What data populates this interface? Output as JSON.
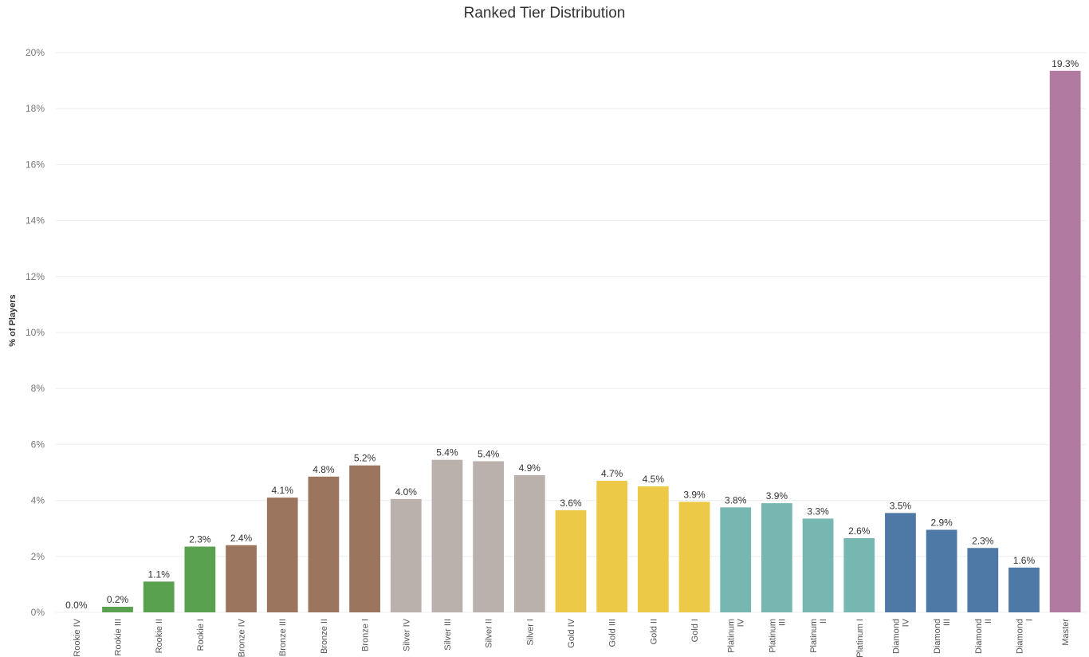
{
  "chart_data": {
    "type": "bar",
    "title": "Ranked Tier Distribution",
    "xlabel": "",
    "ylabel": "% of Players",
    "ylim": [
      0,
      20
    ],
    "yticks": [
      0,
      2,
      4,
      6,
      8,
      10,
      12,
      14,
      16,
      18,
      20
    ],
    "ytick_suffix": "%",
    "grid": true,
    "categories": [
      [
        "Rookie IV"
      ],
      [
        "Rookie III"
      ],
      [
        "Rookie II"
      ],
      [
        "Rookie I"
      ],
      [
        "Bronze IV"
      ],
      [
        "Bronze III"
      ],
      [
        "Bronze II"
      ],
      [
        "Bronze I"
      ],
      [
        "Silver IV"
      ],
      [
        "Silver III"
      ],
      [
        "Silver II"
      ],
      [
        "Silver I"
      ],
      [
        "Gold IV"
      ],
      [
        "Gold III"
      ],
      [
        "Gold II"
      ],
      [
        "Gold I"
      ],
      [
        "Platinum",
        "IV"
      ],
      [
        "Platinum",
        "III"
      ],
      [
        "Platinum",
        "II"
      ],
      [
        "Platinum I"
      ],
      [
        "Diamond",
        "IV"
      ],
      [
        "Diamond",
        "III"
      ],
      [
        "Diamond",
        "II"
      ],
      [
        "Diamond",
        "I"
      ],
      [
        "Master"
      ]
    ],
    "values": [
      0.0,
      0.2,
      1.1,
      2.35,
      2.4,
      4.1,
      4.85,
      5.25,
      4.05,
      5.45,
      5.4,
      4.9,
      3.65,
      4.7,
      4.5,
      3.95,
      3.75,
      3.9,
      3.35,
      2.65,
      3.55,
      2.95,
      2.3,
      1.6,
      19.35
    ],
    "data_labels": [
      "0.0%",
      "0.2%",
      "1.1%",
      "2.3%",
      "2.4%",
      "4.1%",
      "4.8%",
      "5.2%",
      "4.0%",
      "5.4%",
      "5.4%",
      "4.9%",
      "3.6%",
      "4.7%",
      "4.5%",
      "3.9%",
      "3.8%",
      "3.9%",
      "3.3%",
      "2.6%",
      "3.5%",
      "2.9%",
      "2.3%",
      "1.6%",
      "19.3%"
    ],
    "colors": [
      "#59a14f",
      "#59a14f",
      "#59a14f",
      "#59a14f",
      "#9c755f",
      "#9c755f",
      "#9c755f",
      "#9c755f",
      "#bab0ac",
      "#bab0ac",
      "#bab0ac",
      "#bab0ac",
      "#edc948",
      "#edc948",
      "#edc948",
      "#edc948",
      "#76b7b2",
      "#76b7b2",
      "#76b7b2",
      "#76b7b2",
      "#4e79a7",
      "#4e79a7",
      "#4e79a7",
      "#4e79a7",
      "#b07aa1"
    ]
  }
}
